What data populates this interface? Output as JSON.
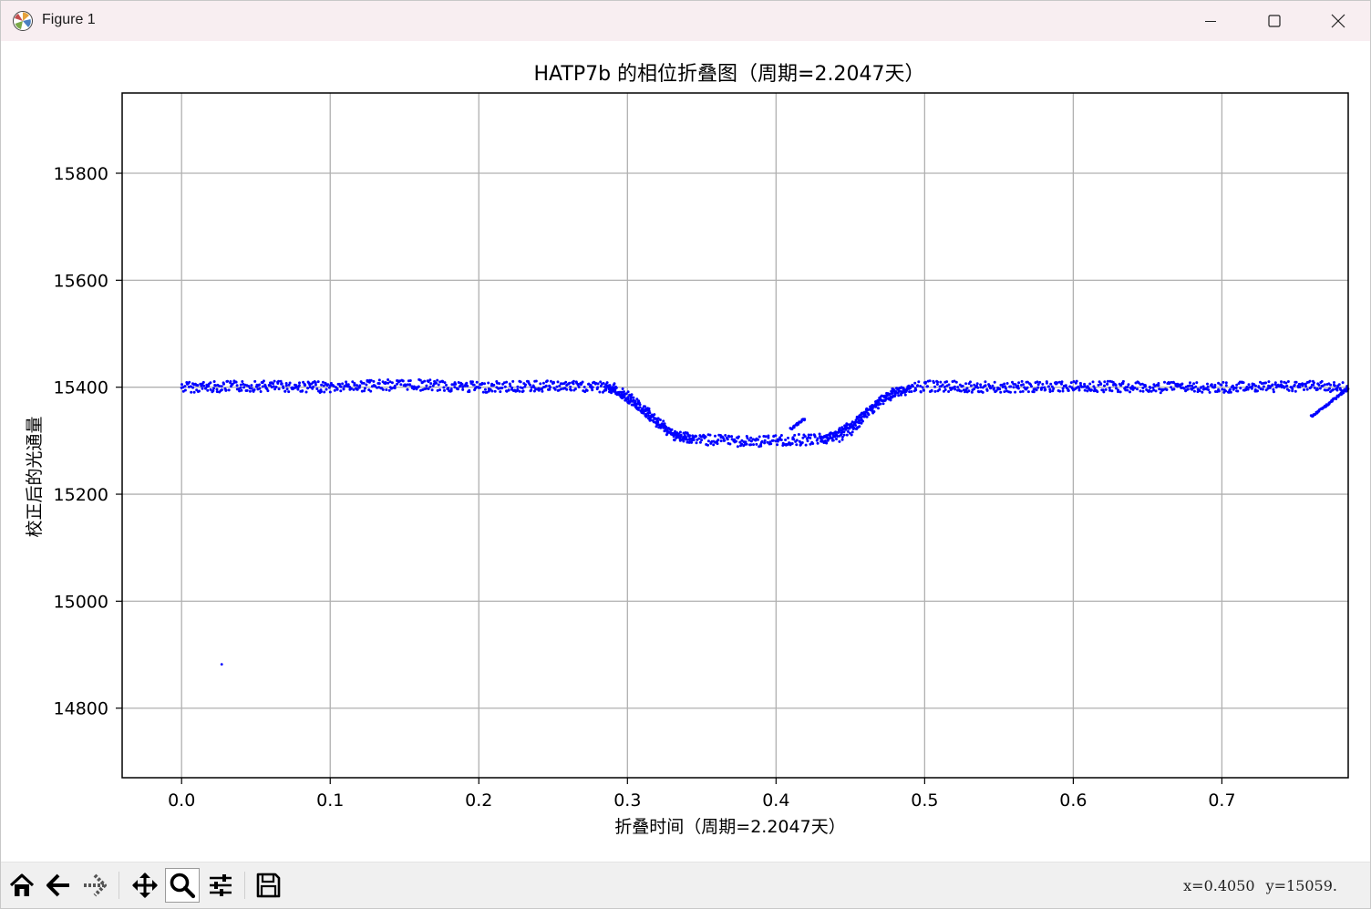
{
  "window": {
    "title": "Figure 1",
    "buttons": {
      "minimize": "minimize-icon",
      "maximize": "maximize-icon",
      "close": "close-icon"
    }
  },
  "toolbar": {
    "buttons": [
      {
        "name": "home-button",
        "icon": "home-icon"
      },
      {
        "name": "back-button",
        "icon": "arrow-left-icon"
      },
      {
        "name": "forward-button",
        "icon": "arrow-right-icon"
      },
      {
        "name": "pan-button",
        "icon": "move-icon"
      },
      {
        "name": "zoom-button",
        "icon": "magnifier-icon",
        "active": true
      },
      {
        "name": "configure-subplots-button",
        "icon": "sliders-icon"
      },
      {
        "name": "save-button",
        "icon": "floppy-icon"
      }
    ],
    "coords": {
      "x": "x=0.4050",
      "y": "y=15059."
    }
  },
  "chart_data": {
    "type": "scatter",
    "title": "HATP7b 的相位折叠图（周期=2.2047天）",
    "xlabel": "折叠时间（周期=2.2047天）",
    "ylabel": "校正后的光通量",
    "xlim": [
      -0.04,
      0.785
    ],
    "ylim": [
      14670,
      15950
    ],
    "xticks": [
      0.0,
      0.1,
      0.2,
      0.3,
      0.4,
      0.5,
      0.6,
      0.7
    ],
    "xtick_labels": [
      "0.0",
      "0.1",
      "0.2",
      "0.3",
      "0.4",
      "0.5",
      "0.6",
      "0.7"
    ],
    "yticks": [
      14800,
      15000,
      15200,
      15400,
      15600,
      15800
    ],
    "ytick_labels": [
      "14800",
      "15000",
      "15200",
      "15400",
      "15600",
      "15800"
    ],
    "grid": true,
    "color": "#0000ff",
    "series": [
      {
        "x": [
          0.0,
          0.05,
          0.1,
          0.15,
          0.2,
          0.25,
          0.28,
          0.29,
          0.3,
          0.31,
          0.32,
          0.33,
          0.35,
          0.38,
          0.4,
          0.42,
          0.44,
          0.45,
          0.46,
          0.47,
          0.48,
          0.49,
          0.5,
          0.55,
          0.6,
          0.65,
          0.7,
          0.75,
          0.785
        ],
        "y": [
          15400,
          15402,
          15400,
          15405,
          15400,
          15402,
          15400,
          15398,
          15385,
          15360,
          15335,
          15312,
          15302,
          15298,
          15300,
          15302,
          15305,
          15318,
          15345,
          15372,
          15390,
          15398,
          15402,
          15400,
          15402,
          15400,
          15400,
          15402,
          15400
        ]
      },
      {
        "x": [
          0.285,
          0.295,
          0.305,
          0.315,
          0.325,
          0.335,
          0.345
        ],
        "y": [
          15400,
          15388,
          15368,
          15345,
          15322,
          15306,
          15300
        ]
      },
      {
        "x": [
          0.43,
          0.44,
          0.45,
          0.46,
          0.47,
          0.48,
          0.49
        ],
        "y": [
          15302,
          15312,
          15330,
          15352,
          15374,
          15390,
          15398
        ]
      },
      {
        "x": [
          0.41,
          0.415,
          0.42
        ],
        "y": [
          15322,
          15332,
          15342
        ]
      },
      {
        "x": [
          0.76,
          0.77,
          0.785
        ],
        "y": [
          15345,
          15365,
          15398
        ]
      },
      {
        "x": [
          0.027
        ],
        "y": [
          14882
        ]
      }
    ]
  }
}
